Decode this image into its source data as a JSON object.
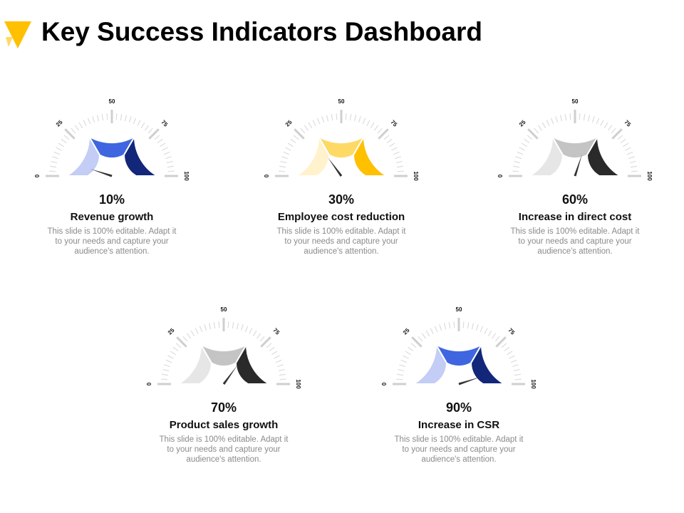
{
  "header": {
    "title": "Key Success Indicators Dashboard"
  },
  "logo": {
    "icon": "yellow-triangle-logo",
    "colors": [
      "#FFC000",
      "#FFD966"
    ]
  },
  "chart_data": [
    {
      "type": "gauge",
      "value": 10,
      "value_label": "10%",
      "label": "Revenue growth",
      "description": "This slide is 100% editable. Adapt it to your needs and capture your audience's attention.",
      "range": [
        0,
        100
      ],
      "tick_labels": [
        "0",
        "25",
        "50",
        "75",
        "100"
      ],
      "band_colors": [
        "#C3CDF5",
        "#3F66E0",
        "#12267A"
      ]
    },
    {
      "type": "gauge",
      "value": 30,
      "value_label": "30%",
      "label": "Employee cost reduction",
      "description": "This slide is 100% editable. Adapt it to your needs and capture your audience's attention.",
      "range": [
        0,
        100
      ],
      "tick_labels": [
        "0",
        "25",
        "50",
        "75",
        "100"
      ],
      "band_colors": [
        "#FFF2CC",
        "#FFD966",
        "#FFC000"
      ]
    },
    {
      "type": "gauge",
      "value": 60,
      "value_label": "60%",
      "label": "Increase in direct cost",
      "description": "This slide is 100% editable. Adapt it to your needs and capture your audience's attention.",
      "range": [
        0,
        100
      ],
      "tick_labels": [
        "0",
        "25",
        "50",
        "75",
        "100"
      ],
      "band_colors": [
        "#E6E6E6",
        "#C4C4C4",
        "#2A2A2A"
      ]
    },
    {
      "type": "gauge",
      "value": 70,
      "value_label": "70%",
      "label": "Product sales growth",
      "description": "This slide is 100% editable. Adapt it to your needs and capture your audience's attention.",
      "range": [
        0,
        100
      ],
      "tick_labels": [
        "0",
        "25",
        "50",
        "75",
        "100"
      ],
      "band_colors": [
        "#E6E6E6",
        "#C4C4C4",
        "#2A2A2A"
      ]
    },
    {
      "type": "gauge",
      "value": 90,
      "value_label": "90%",
      "label": "Increase in CSR",
      "description": "This slide is 100% editable. Adapt it to your needs and capture your audience's attention.",
      "range": [
        0,
        100
      ],
      "tick_labels": [
        "0",
        "25",
        "50",
        "75",
        "100"
      ],
      "band_colors": [
        "#C3CDF5",
        "#3F66E0",
        "#12267A"
      ]
    }
  ]
}
